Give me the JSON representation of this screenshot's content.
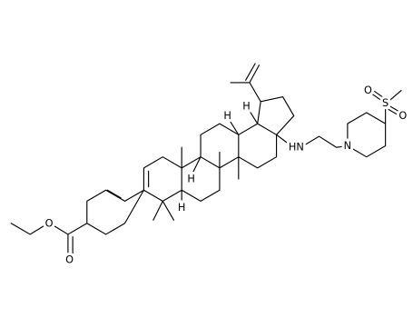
{
  "atom_labels": [
    "O",
    "O",
    "H",
    "H",
    "H",
    "H",
    "HN",
    "N",
    "S",
    "O",
    "O"
  ]
}
